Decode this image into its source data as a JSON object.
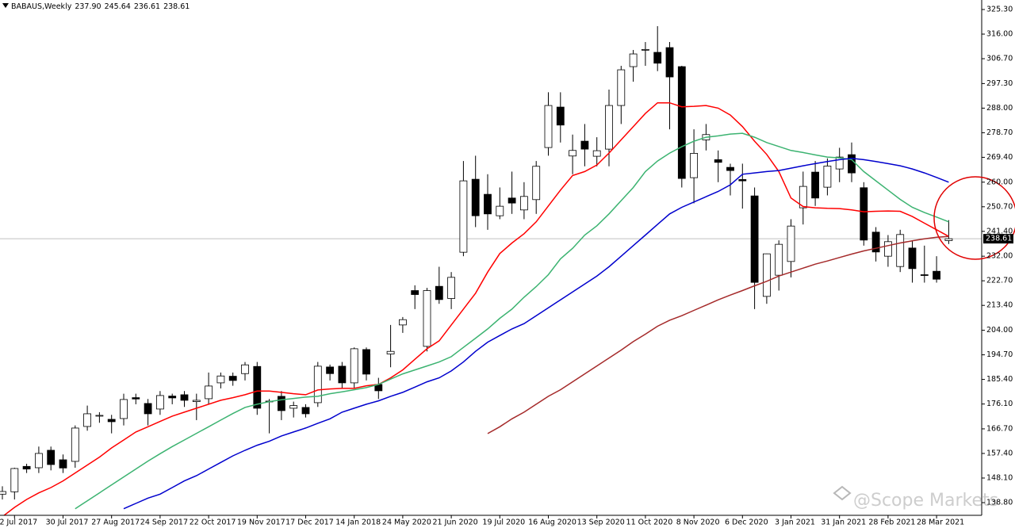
{
  "chart_data": {
    "type": "candlestick",
    "title": "BABAUS,Weekly",
    "ohlc_labels": [
      "237.90",
      "245.64",
      "236.61",
      "238.61"
    ],
    "categories": [
      null,
      "2 Jul 2017",
      null,
      null,
      null,
      "30 Jul 2017",
      null,
      null,
      null,
      "27 Aug 2017",
      null,
      null,
      null,
      "24 Sep 2017",
      null,
      null,
      null,
      "22 Oct 2017",
      null,
      null,
      null,
      "19 Nov 2017",
      null,
      null,
      null,
      "17 Dec 2017",
      null,
      null,
      null,
      "14 Jan 2018",
      null,
      null,
      null,
      "24 May 2020",
      null,
      null,
      null,
      "21 Jun 2020",
      null,
      null,
      null,
      "19 Jul 2020",
      null,
      null,
      null,
      "16 Aug 2020",
      null,
      null,
      null,
      "13 Sep 2020",
      null,
      null,
      null,
      "11 Oct 2020",
      null,
      null,
      null,
      "8 Nov 2020",
      null,
      null,
      null,
      "6 Dec 2020",
      null,
      null,
      null,
      "3 Jan 2021",
      null,
      null,
      null,
      "31 Jan 2021",
      null,
      null,
      null,
      "28 Feb 2021",
      null,
      null,
      null,
      "28 Mar 2021",
      null
    ],
    "open": [
      142,
      142.9,
      152.5,
      152,
      158.6,
      155,
      154.4,
      167.6,
      171.5,
      170.3,
      170.6,
      178.5,
      176.3,
      174.2,
      179.1,
      179.6,
      177,
      178.1,
      184.1,
      186.6,
      187.6,
      190.3,
      177.2,
      179,
      174.5,
      174.8,
      176.6,
      190.1,
      190.4,
      184.1,
      196.7,
      183.5,
      195,
      206,
      219,
      197.9,
      220.6,
      216,
      233.5,
      261.1,
      255.4,
      247.3,
      254,
      249.5,
      253.4,
      273.1,
      288.4,
      269.9,
      275.5,
      269.8,
      272.5,
      289,
      303.7,
      310,
      309.1,
      310.9,
      303.7,
      261.7,
      276,
      268.5,
      265.6,
      261,
      254.8,
      216.8,
      224.8,
      230,
      250.3,
      263.8,
      258.1,
      265,
      270.4,
      257.9,
      241.1,
      232,
      228.1,
      235.1,
      225,
      226.3,
      237.9
    ],
    "high": [
      145,
      152,
      153.5,
      160,
      160,
      157,
      168,
      175.5,
      173,
      172,
      180,
      180,
      178,
      181,
      180,
      181,
      180,
      188,
      188,
      188,
      192,
      192,
      178,
      181,
      177,
      176,
      192,
      191,
      192,
      197.5,
      197.5,
      186,
      206,
      209,
      221,
      220,
      228,
      226,
      268,
      270,
      263,
      258,
      264,
      260,
      268,
      294,
      294,
      278,
      282,
      277,
      295,
      304,
      310,
      313,
      319,
      313,
      304,
      280,
      282,
      272,
      267,
      267,
      258,
      233,
      238,
      246,
      264,
      268,
      269,
      273,
      275,
      260,
      243,
      240,
      242,
      238,
      236,
      232,
      245.64
    ],
    "low": [
      140,
      140,
      150,
      150,
      151,
      150,
      152,
      166,
      169,
      165,
      168,
      176,
      168,
      172,
      176,
      175,
      170,
      176,
      182,
      183,
      185,
      172,
      165,
      170,
      171,
      171,
      175,
      185,
      182,
      182,
      185,
      178,
      190,
      203,
      212,
      196,
      214,
      212,
      232,
      243,
      242,
      246,
      248,
      246,
      248,
      270,
      275,
      263,
      266,
      266,
      266,
      282,
      298,
      304,
      302,
      280,
      258,
      252,
      272,
      260,
      255,
      250,
      212,
      214,
      219,
      224,
      244,
      251,
      255,
      260,
      260,
      236,
      230,
      228,
      226,
      222,
      222,
      222,
      236.61
    ],
    "close": [
      143,
      151.7,
      151.5,
      157.4,
      153.2,
      151.9,
      167,
      172.4,
      171.8,
      169.4,
      177.8,
      178,
      172.4,
      179.3,
      178.4,
      177.5,
      177.5,
      182.9,
      186.7,
      185,
      190.9,
      174.5,
      177,
      173.6,
      175.5,
      172.4,
      190.4,
      187.6,
      184.1,
      197,
      187.4,
      181.1,
      196,
      208,
      217.5,
      219,
      215.6,
      224,
      260.5,
      247.3,
      248,
      250.9,
      252.1,
      254.6,
      266,
      289,
      281.6,
      272,
      272.5,
      271.9,
      289,
      302.5,
      308.5,
      310.2,
      305,
      299.8,
      261.4,
      270.9,
      278,
      267.5,
      264.4,
      260.5,
      222.1,
      232.9,
      236.5,
      243.4,
      258.4,
      254,
      266.1,
      269.5,
      263.5,
      238.1,
      233.6,
      237.5,
      240.2,
      227.3,
      224.8,
      223.3,
      238.61
    ],
    "moving_averages": [
      {
        "color": "#ff0000",
        "values": [
          133.5,
          137,
          140,
          142.5,
          144.5,
          147,
          150,
          153,
          156,
          159.5,
          162.5,
          165.5,
          167.5,
          169.5,
          171.5,
          173,
          174.5,
          176,
          177.5,
          178.5,
          179.6,
          181,
          181,
          180.5,
          180,
          179.6,
          181.4,
          181.8,
          182,
          182,
          183,
          183.5,
          186,
          189,
          193,
          197,
          200,
          206,
          212,
          218,
          226,
          233,
          237,
          240.5,
          245,
          251,
          257,
          262.5,
          264,
          266.5,
          271,
          276,
          281,
          286,
          290,
          290,
          288.5,
          288.7,
          289,
          288,
          285.4,
          281,
          275.5,
          270.5,
          264,
          254,
          250.8,
          250.3,
          250.1,
          250,
          249.5,
          248.8,
          249,
          249.1,
          249,
          247,
          244.5,
          242,
          239.5
        ]
      },
      {
        "color": "#3cb371",
        "values": [
          null,
          null,
          null,
          null,
          null,
          null,
          136.5,
          139.5,
          142.5,
          145.5,
          148.5,
          151.5,
          154.5,
          157.3,
          160,
          162.5,
          165,
          167.5,
          170,
          172.5,
          174.8,
          176,
          177,
          177.7,
          178.2,
          178.7,
          179,
          180,
          180.7,
          181.5,
          182.3,
          183.5,
          185.5,
          187.5,
          189,
          190.5,
          192,
          194,
          197.5,
          201,
          204.5,
          208.5,
          212,
          216.5,
          220.5,
          225,
          231,
          235,
          240,
          243.5,
          248,
          253,
          258,
          264,
          268,
          271,
          273.4,
          275.5,
          277,
          277.5,
          278.2,
          278.5,
          277,
          275,
          273.5,
          272,
          271.2,
          270.3,
          269.5,
          269.2,
          268.5,
          264,
          260.5,
          257,
          253.5,
          250.5,
          248.5,
          246.8,
          245
        ]
      },
      {
        "color": "#0000cd",
        "values": [
          null,
          null,
          null,
          null,
          null,
          null,
          null,
          null,
          null,
          null,
          136.5,
          138.5,
          140.5,
          142,
          144.5,
          147,
          149,
          151.5,
          154,
          156.5,
          158.6,
          160.5,
          162,
          164,
          165.5,
          167,
          168.8,
          170.5,
          173,
          174.5,
          176,
          177.3,
          179,
          180.5,
          182.5,
          184.5,
          186,
          188.6,
          192,
          196,
          199.5,
          202,
          204.5,
          206.5,
          209.5,
          212.5,
          215.5,
          218.5,
          221.5,
          224.5,
          228,
          232,
          236,
          240,
          244,
          248,
          250.5,
          252.5,
          254.5,
          256.5,
          259,
          263,
          263.5,
          264,
          264.4,
          265.3,
          266.2,
          267,
          267.8,
          268.5,
          269,
          268.5,
          267.8,
          267,
          266.2,
          265,
          263.5,
          261.8,
          260
        ]
      },
      {
        "color": "#a52a2a",
        "values": [
          null,
          null,
          null,
          null,
          null,
          null,
          null,
          null,
          null,
          null,
          null,
          null,
          null,
          null,
          null,
          null,
          null,
          null,
          null,
          null,
          null,
          null,
          null,
          null,
          null,
          null,
          null,
          null,
          null,
          null,
          null,
          null,
          null,
          null,
          null,
          null,
          null,
          null,
          null,
          null,
          164.9,
          167.5,
          170.5,
          173,
          176,
          179,
          181.5,
          184.5,
          187.5,
          190.5,
          193.5,
          196.5,
          199.7,
          202.5,
          205.5,
          207.8,
          209.5,
          211.5,
          213.5,
          215.5,
          217.3,
          219,
          220.8,
          222.5,
          224.5,
          226,
          227.5,
          229,
          230.2,
          231.5,
          232.8,
          234,
          235,
          236,
          237,
          237.8,
          238.6,
          239.2,
          239.5
        ]
      }
    ],
    "current_price": {
      "value": 238.61,
      "label": "238.61"
    },
    "ylim": [
      134.0,
      328.9
    ],
    "yticks": [
      {
        "value": 325.3,
        "label": "325.30"
      },
      {
        "value": 316,
        "label": "316.00"
      },
      {
        "value": 306.7,
        "label": "306.70"
      },
      {
        "value": 297.3,
        "label": "297.30"
      },
      {
        "value": 288,
        "label": "288.00"
      },
      {
        "value": 278.7,
        "label": "278.70"
      },
      {
        "value": 269.4,
        "label": "269.40"
      },
      {
        "value": 260,
        "label": "260.00"
      },
      {
        "value": 250.7,
        "label": "250.70"
      },
      {
        "value": 241.4,
        "label": "241.40"
      },
      {
        "value": 232,
        "label": "232.00"
      },
      {
        "value": 222.7,
        "label": "222.70"
      },
      {
        "value": 213.4,
        "label": "213.40"
      },
      {
        "value": 204,
        "label": "204.00"
      },
      {
        "value": 194.7,
        "label": "194.70"
      },
      {
        "value": 185.4,
        "label": "185.40"
      },
      {
        "value": 176.1,
        "label": "176.10"
      },
      {
        "value": 166.7,
        "label": "166.70"
      },
      {
        "value": 157.4,
        "label": "157.40"
      },
      {
        "value": 148.1,
        "label": "148.10"
      },
      {
        "value": 138.8,
        "label": "138.80"
      }
    ],
    "watermark": "@Scope Markets"
  }
}
